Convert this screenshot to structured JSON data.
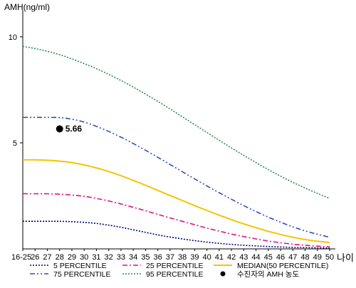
{
  "chart_data": {
    "type": "line",
    "ylabel": "AMH(ng/ml)",
    "xlabel": "나이",
    "ylim": [
      0,
      11
    ],
    "y_ticks": [
      "10",
      "5"
    ],
    "y_tick_values": [
      10,
      5
    ],
    "x_ticks": [
      "16-25",
      "26",
      "27",
      "28",
      "29",
      "30",
      "31",
      "32",
      "33",
      "34",
      "35",
      "36",
      "37",
      "38",
      "39",
      "40",
      "41",
      "42",
      "43",
      "44",
      "45",
      "46",
      "47",
      "48",
      "49",
      "50"
    ],
    "series": [
      {
        "name": "5 PERCENTILE",
        "color": "#000080",
        "dash": "dotted",
        "values": [
          1.3,
          1.3,
          1.3,
          1.3,
          1.28,
          1.25,
          1.2,
          1.12,
          1.02,
          0.9,
          0.78,
          0.66,
          0.56,
          0.47,
          0.39,
          0.32,
          0.26,
          0.21,
          0.17,
          0.14,
          0.11,
          0.09,
          0.07,
          0.06,
          0.05,
          0.04
        ]
      },
      {
        "name": "25 PERCENTILE",
        "color": "#e0118a",
        "dash": "dashdot",
        "values": [
          2.6,
          2.6,
          2.6,
          2.58,
          2.54,
          2.48,
          2.38,
          2.26,
          2.12,
          1.96,
          1.8,
          1.63,
          1.46,
          1.3,
          1.14,
          0.98,
          0.84,
          0.7,
          0.58,
          0.47,
          0.37,
          0.29,
          0.22,
          0.17,
          0.13,
          0.1
        ]
      },
      {
        "name": "MEDIAN(50 PERCENTILE)",
        "color": "#f5c400",
        "dash": "solid",
        "values": [
          4.2,
          4.2,
          4.18,
          4.14,
          4.07,
          3.96,
          3.82,
          3.65,
          3.45,
          3.23,
          3,
          2.76,
          2.52,
          2.28,
          2.04,
          1.81,
          1.59,
          1.38,
          1.18,
          1,
          0.83,
          0.68,
          0.55,
          0.44,
          0.36,
          0.3
        ]
      },
      {
        "name": "75 PERCENTILE",
        "color": "#2e4fb4",
        "dash": "dashdotdot",
        "values": [
          6.2,
          6.2,
          6.2,
          6.19,
          6.12,
          5.98,
          5.78,
          5.54,
          5.27,
          4.97,
          4.65,
          4.32,
          3.98,
          3.64,
          3.3,
          2.97,
          2.65,
          2.34,
          2.04,
          1.76,
          1.5,
          1.26,
          1.04,
          0.85,
          0.69,
          0.55
        ]
      },
      {
        "name": "95 PERCENTILE",
        "color": "#2e8b57",
        "dash": "dotted",
        "values": [
          9.55,
          9.45,
          9.32,
          9.16,
          8.96,
          8.74,
          8.5,
          8.23,
          7.94,
          7.63,
          7.3,
          6.96,
          6.6,
          6.23,
          5.86,
          5.49,
          5.12,
          4.76,
          4.41,
          4.07,
          3.74,
          3.43,
          3.14,
          2.87,
          2.62,
          2.38
        ]
      }
    ],
    "point": {
      "name": "수진자의 AMH 농도",
      "x": "28",
      "y": 5.66,
      "label": "5.66"
    },
    "legend_order": [
      "5 PERCENTILE",
      "25 PERCENTILE",
      "MEDIAN(50 PERCENTILE)",
      "75 PERCENTILE",
      "95 PERCENTILE",
      "수진자의 AMH 농도"
    ],
    "legend_position": "bottom",
    "grid": false
  }
}
